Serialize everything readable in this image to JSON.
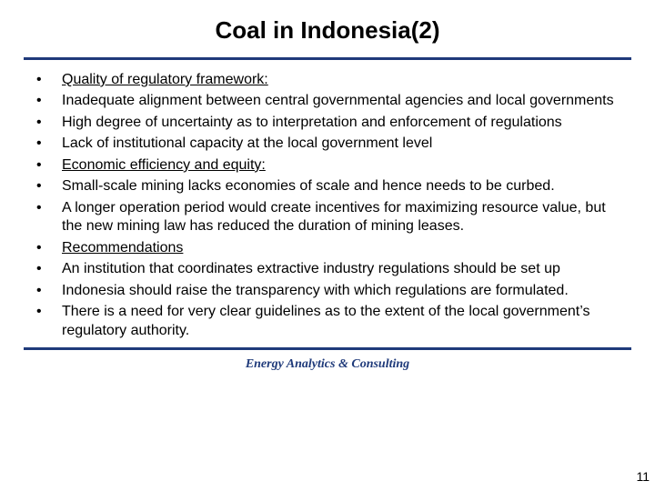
{
  "slide": {
    "title": "Coal in Indonesia(2)",
    "rule_color": "#1f3a7a",
    "background_color": "#ffffff",
    "title_fontsize": 26,
    "body_fontsize": 16,
    "bullets": [
      {
        "text": "Quality of regulatory framework:",
        "underline": true
      },
      {
        "text": "Inadequate alignment between central governmental agencies and local governments",
        "underline": false
      },
      {
        "text": "High degree of uncertainty as to interpretation and enforcement of regulations",
        "underline": false
      },
      {
        "text": "Lack of institutional capacity at the local government level",
        "underline": false
      },
      {
        "text": "Economic efficiency and equity:",
        "underline": true
      },
      {
        "text": "Small-scale mining lacks economies of scale and hence needs to be curbed.",
        "underline": false
      },
      {
        "text": "A longer operation period would create incentives for maximizing resource value, but the new mining law has reduced the duration of mining leases.",
        "underline": false
      },
      {
        "text": "Recommendations",
        "underline": true
      },
      {
        "text": "An institution that coordinates extractive industry regulations should be set up",
        "underline": false
      },
      {
        "text": "Indonesia should raise the transparency with which regulations are formulated.",
        "underline": false
      },
      {
        "text": "There is a need for very clear guidelines as to the extent of the local government’s regulatory authority.",
        "underline": false
      }
    ],
    "footer": "Energy Analytics & Consulting",
    "footer_color": "#1f3a7a",
    "page_number": "11"
  }
}
